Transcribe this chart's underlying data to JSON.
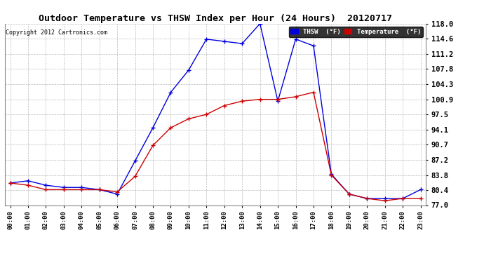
{
  "title": "Outdoor Temperature vs THSW Index per Hour (24 Hours)  20120717",
  "copyright": "Copyright 2012 Cartronics.com",
  "hours": [
    "00:00",
    "01:00",
    "02:00",
    "03:00",
    "04:00",
    "05:00",
    "06:00",
    "07:00",
    "08:00",
    "09:00",
    "10:00",
    "11:00",
    "12:00",
    "13:00",
    "14:00",
    "15:00",
    "16:00",
    "17:00",
    "18:00",
    "19:00",
    "20:00",
    "21:00",
    "22:00",
    "23:00"
  ],
  "thsw": [
    82.0,
    82.5,
    81.5,
    81.0,
    81.0,
    80.5,
    79.5,
    87.0,
    94.5,
    102.5,
    107.5,
    114.5,
    114.0,
    113.5,
    118.0,
    100.5,
    114.5,
    113.0,
    84.0,
    79.5,
    78.5,
    78.5,
    78.5,
    80.5
  ],
  "temperature": [
    82.0,
    81.5,
    80.5,
    80.5,
    80.5,
    80.5,
    80.0,
    83.5,
    90.5,
    94.5,
    96.5,
    97.5,
    99.5,
    100.5,
    100.9,
    100.9,
    101.5,
    102.5,
    83.8,
    79.5,
    78.5,
    78.0,
    78.5,
    78.5
  ],
  "thsw_color": "#0000dd",
  "temp_color": "#cc0000",
  "bg_color": "#ffffff",
  "grid_color": "#bbbbbb",
  "yticks": [
    77.0,
    80.4,
    83.8,
    87.2,
    90.7,
    94.1,
    97.5,
    100.9,
    104.3,
    107.8,
    111.2,
    114.6,
    118.0
  ],
  "ymin": 77.0,
  "ymax": 118.0,
  "figwidth": 6.9,
  "figheight": 3.75,
  "dpi": 100
}
